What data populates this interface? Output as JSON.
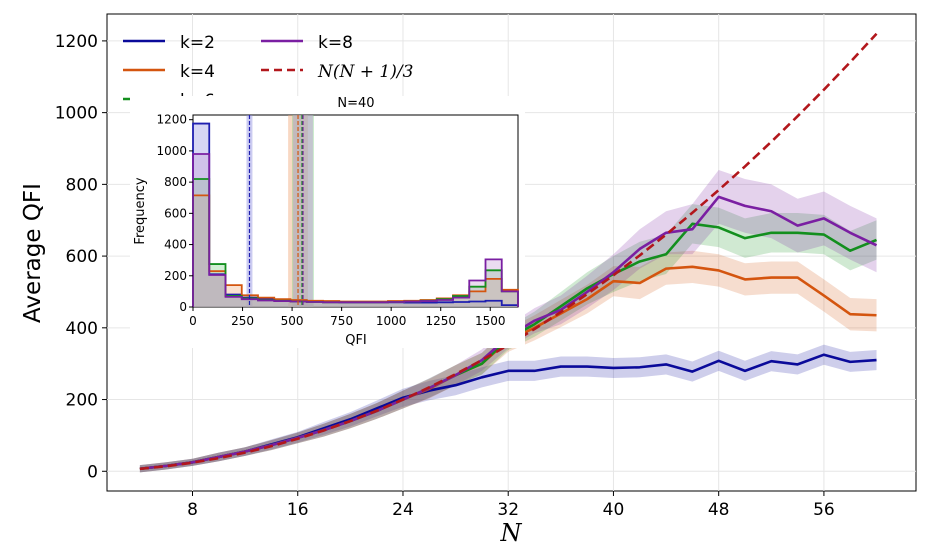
{
  "chart_data": [
    {
      "type": "line",
      "title": "",
      "xlabel": "N",
      "ylabel": "Average QFI",
      "xlim": [
        1.5,
        63
      ],
      "ylim": [
        -55,
        1275
      ],
      "xticks": [
        8,
        16,
        24,
        32,
        40,
        48,
        56
      ],
      "yticks": [
        0,
        200,
        400,
        600,
        800,
        1000,
        1200
      ],
      "grid": true,
      "legend_position": "top-left",
      "x": [
        4,
        6,
        8,
        10,
        12,
        14,
        16,
        18,
        20,
        22,
        24,
        26,
        28,
        30,
        32,
        34,
        36,
        38,
        40,
        42,
        44,
        46,
        48,
        50,
        52,
        54,
        56,
        58,
        60
      ],
      "series": [
        {
          "name": "k=2",
          "color": "#0a0a9a",
          "style": "solid",
          "values": [
            7,
            15,
            25,
            40,
            55,
            75,
            95,
            120,
            145,
            175,
            205,
            225,
            240,
            262,
            280,
            280,
            292,
            292,
            288,
            290,
            298,
            278,
            308,
            280,
            307,
            298,
            325,
            305,
            310
          ],
          "band": [
            10,
            10,
            10,
            12,
            12,
            14,
            15,
            18,
            20,
            22,
            25,
            27,
            28,
            28,
            28,
            28,
            28,
            28,
            28,
            28,
            28,
            28,
            28,
            28,
            28,
            28,
            28,
            28,
            28
          ]
        },
        {
          "name": "k=4",
          "color": "#d4550f",
          "style": "solid",
          "values": [
            7,
            15,
            25,
            40,
            55,
            73,
            93,
            115,
            140,
            168,
            200,
            230,
            268,
            300,
            365,
            400,
            440,
            480,
            530,
            525,
            565,
            570,
            560,
            535,
            540,
            540,
            490,
            438,
            435
          ],
          "band": [
            10,
            10,
            10,
            12,
            12,
            14,
            15,
            18,
            20,
            22,
            25,
            27,
            28,
            30,
            32,
            35,
            38,
            40,
            42,
            45,
            45,
            45,
            45,
            45,
            45,
            45,
            45,
            45,
            45
          ]
        },
        {
          "name": "k=6",
          "color": "#138f1e",
          "style": "solid",
          "values": [
            7,
            15,
            25,
            40,
            55,
            73,
            93,
            115,
            140,
            168,
            200,
            232,
            268,
            300,
            370,
            410,
            460,
            510,
            550,
            585,
            605,
            690,
            680,
            650,
            665,
            665,
            660,
            615,
            645
          ],
          "band": [
            10,
            10,
            10,
            12,
            12,
            14,
            15,
            18,
            20,
            22,
            25,
            27,
            28,
            30,
            32,
            35,
            40,
            45,
            50,
            55,
            55,
            55,
            55,
            55,
            55,
            55,
            55,
            55,
            55
          ]
        },
        {
          "name": "k=8",
          "color": "#7a1fa2",
          "style": "solid",
          "values": [
            7,
            15,
            25,
            40,
            55,
            73,
            93,
            115,
            140,
            168,
            200,
            232,
            268,
            310,
            375,
            420,
            450,
            500,
            555,
            620,
            665,
            675,
            765,
            740,
            725,
            685,
            705,
            665,
            630
          ],
          "band": [
            10,
            10,
            10,
            12,
            12,
            14,
            15,
            18,
            20,
            22,
            25,
            27,
            28,
            30,
            32,
            35,
            40,
            45,
            50,
            55,
            60,
            70,
            75,
            75,
            75,
            75,
            75,
            75,
            75
          ]
        },
        {
          "name": "N(N + 1)/3",
          "color": "#b2171c",
          "style": "dashed",
          "values": [
            6.7,
            14,
            24,
            36.7,
            52,
            70,
            90.7,
            114,
            140,
            168.7,
            200,
            234,
            270.7,
            310,
            352,
            396.7,
            444,
            494,
            546.7,
            602,
            660,
            720.7,
            784,
            850,
            918.7,
            990,
            1064,
            1140.7,
            1220
          ]
        }
      ]
    },
    {
      "type": "bar",
      "title": "N=40",
      "xlabel": "QFI",
      "ylabel": "Frequency",
      "xlim": [
        0,
        1640
      ],
      "ylim": [
        0,
        1230
      ],
      "xticks": [
        0,
        250,
        500,
        750,
        1000,
        1250,
        1500
      ],
      "yticks": [
        0,
        200,
        400,
        600,
        800,
        1000,
        1200
      ],
      "bins": [
        0,
        82,
        164,
        246,
        328,
        410,
        492,
        574,
        656,
        738,
        820,
        902,
        984,
        1066,
        1148,
        1230,
        1312,
        1394,
        1476,
        1558,
        1640
      ],
      "series": [
        {
          "name": "k=2",
          "color": "#1f1fb0",
          "fill": "#8c8ce0",
          "counts": [
            1175,
            210,
            80,
            60,
            50,
            42,
            38,
            35,
            32,
            30,
            30,
            30,
            30,
            28,
            28,
            30,
            32,
            35,
            40,
            12
          ],
          "mean": 285,
          "band": [
            270,
            300
          ]
        },
        {
          "name": "k=4",
          "color": "#d4550f",
          "fill": "#f0a879",
          "counts": [
            715,
            230,
            140,
            75,
            60,
            50,
            45,
            40,
            38,
            35,
            35,
            35,
            38,
            40,
            45,
            55,
            75,
            100,
            180,
            110
          ],
          "mean": 530,
          "band": [
            480,
            580
          ]
        },
        {
          "name": "k=6",
          "color": "#138f1e",
          "fill": "#7ecf84",
          "counts": [
            820,
            275,
            70,
            55,
            45,
            40,
            35,
            32,
            30,
            30,
            30,
            30,
            32,
            35,
            40,
            50,
            70,
            130,
            235,
            100
          ],
          "mean": 550,
          "band": [
            500,
            610
          ]
        },
        {
          "name": "k=8",
          "color": "#7a1fa2",
          "fill": "#c49ad8",
          "counts": [
            980,
            205,
            65,
            50,
            42,
            38,
            35,
            32,
            30,
            30,
            30,
            30,
            32,
            35,
            38,
            45,
            60,
            170,
            305,
            100
          ],
          "mean": 555,
          "band": [
            505,
            605
          ]
        }
      ]
    }
  ]
}
